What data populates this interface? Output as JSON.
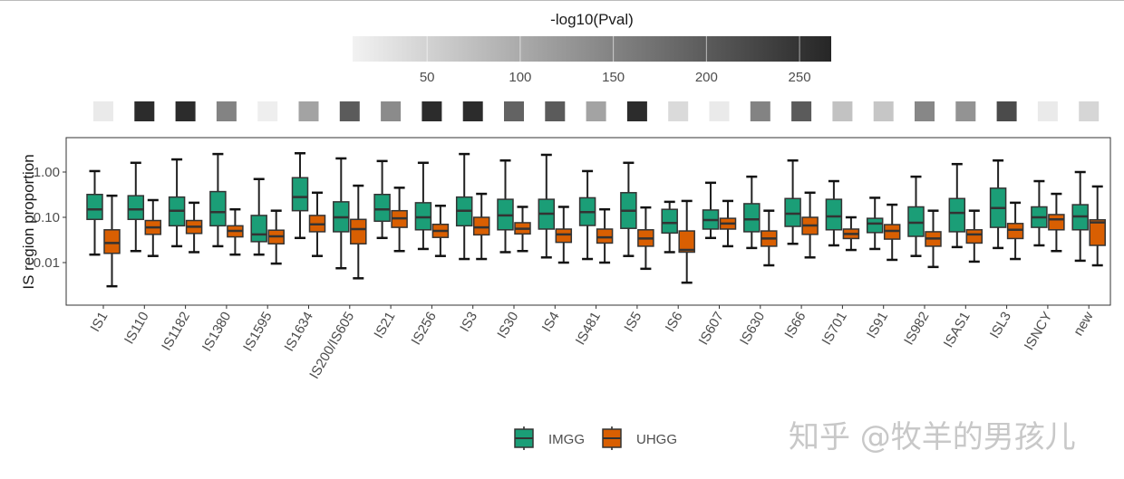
{
  "chart_data": {
    "type": "boxplot",
    "ylabel": "IS region proportion",
    "yscale": "log10",
    "yticks": [
      "0.01",
      "0.10",
      "1.00"
    ],
    "ytick_values": [
      0.01,
      0.1,
      1
    ],
    "ylim": [
      0.0013,
      5
    ],
    "grid": false,
    "legend_position": "bottom",
    "series": [
      {
        "name": "IMGG",
        "color": "#1b9e77"
      },
      {
        "name": "UHGG",
        "color": "#d95f02"
      }
    ],
    "categories": [
      "IS1",
      "IS110",
      "IS1182",
      "IS1380",
      "IS1595",
      "IS1634",
      "IS200/IS605",
      "IS21",
      "IS256",
      "IS3",
      "IS30",
      "IS4",
      "IS481",
      "IS5",
      "IS6",
      "IS607",
      "IS630",
      "IS66",
      "IS701",
      "IS91",
      "IS982",
      "ISAS1",
      "ISL3",
      "ISNCY",
      "new"
    ],
    "box_fields": [
      "whisker_low",
      "q1",
      "median",
      "q3",
      "whisker_high"
    ],
    "boxes": {
      "IMGG": [
        [
          0.015,
          0.09,
          0.15,
          0.32,
          1.05
        ],
        [
          0.018,
          0.09,
          0.15,
          0.3,
          1.6
        ],
        [
          0.023,
          0.065,
          0.14,
          0.28,
          1.9
        ],
        [
          0.023,
          0.065,
          0.13,
          0.37,
          2.5
        ],
        [
          0.015,
          0.029,
          0.042,
          0.11,
          0.7
        ],
        [
          0.035,
          0.14,
          0.28,
          0.75,
          2.6
        ],
        [
          0.0075,
          0.048,
          0.1,
          0.22,
          2.0
        ],
        [
          0.035,
          0.082,
          0.15,
          0.32,
          1.75
        ],
        [
          0.02,
          0.053,
          0.1,
          0.21,
          1.6
        ],
        [
          0.012,
          0.065,
          0.14,
          0.28,
          2.5
        ],
        [
          0.017,
          0.053,
          0.11,
          0.25,
          1.8
        ],
        [
          0.013,
          0.055,
          0.12,
          0.25,
          2.4
        ],
        [
          0.012,
          0.066,
          0.13,
          0.27,
          1.05
        ],
        [
          0.014,
          0.057,
          0.14,
          0.35,
          1.6
        ],
        [
          0.017,
          0.045,
          0.075,
          0.15,
          0.22
        ],
        [
          0.035,
          0.055,
          0.087,
          0.145,
          0.58
        ],
        [
          0.021,
          0.048,
          0.09,
          0.2,
          0.79
        ],
        [
          0.026,
          0.063,
          0.12,
          0.26,
          1.8
        ],
        [
          0.024,
          0.053,
          0.105,
          0.25,
          0.63
        ],
        [
          0.02,
          0.046,
          0.073,
          0.095,
          0.27
        ],
        [
          0.014,
          0.038,
          0.076,
          0.17,
          0.79
        ],
        [
          0.022,
          0.048,
          0.125,
          0.26,
          1.5
        ],
        [
          0.021,
          0.06,
          0.16,
          0.44,
          1.8
        ],
        [
          0.024,
          0.06,
          0.1,
          0.17,
          0.63
        ],
        [
          0.011,
          0.053,
          0.105,
          0.19,
          1.0
        ]
      ],
      "UHGG": [
        [
          0.003,
          0.016,
          0.027,
          0.053,
          0.3
        ],
        [
          0.014,
          0.042,
          0.06,
          0.085,
          0.24
        ],
        [
          0.017,
          0.044,
          0.062,
          0.085,
          0.21
        ],
        [
          0.015,
          0.037,
          0.05,
          0.065,
          0.15
        ],
        [
          0.0095,
          0.026,
          0.038,
          0.052,
          0.14
        ],
        [
          0.014,
          0.048,
          0.07,
          0.11,
          0.35
        ],
        [
          0.0045,
          0.026,
          0.055,
          0.09,
          0.5
        ],
        [
          0.018,
          0.06,
          0.095,
          0.14,
          0.45
        ],
        [
          0.014,
          0.036,
          0.05,
          0.07,
          0.18
        ],
        [
          0.012,
          0.041,
          0.06,
          0.1,
          0.33
        ],
        [
          0.018,
          0.043,
          0.056,
          0.076,
          0.17
        ],
        [
          0.01,
          0.028,
          0.042,
          0.055,
          0.17
        ],
        [
          0.01,
          0.027,
          0.036,
          0.055,
          0.15
        ],
        [
          0.0073,
          0.023,
          0.034,
          0.053,
          0.165
        ],
        [
          0.0036,
          0.017,
          0.019,
          0.05,
          0.23
        ],
        [
          0.023,
          0.055,
          0.073,
          0.095,
          0.23
        ],
        [
          0.0087,
          0.023,
          0.034,
          0.05,
          0.14
        ],
        [
          0.013,
          0.042,
          0.066,
          0.1,
          0.35
        ],
        [
          0.019,
          0.034,
          0.043,
          0.055,
          0.1
        ],
        [
          0.0115,
          0.033,
          0.05,
          0.069,
          0.19
        ],
        [
          0.008,
          0.023,
          0.034,
          0.048,
          0.14
        ],
        [
          0.0105,
          0.027,
          0.042,
          0.053,
          0.14
        ],
        [
          0.012,
          0.034,
          0.053,
          0.073,
          0.21
        ],
        [
          0.018,
          0.053,
          0.09,
          0.115,
          0.33
        ],
        [
          0.0087,
          0.024,
          0.077,
          0.088,
          0.48
        ]
      ]
    },
    "heatmap": {
      "title": "-log10(Pval)",
      "range": [
        10,
        267
      ],
      "ticks": [
        "50",
        "100",
        "150",
        "200",
        "250"
      ],
      "tick_values": [
        50,
        100,
        150,
        200,
        250
      ],
      "low_color": "#f2f2f2",
      "high_color": "#262626",
      "values": [
        20,
        260,
        260,
        150,
        15,
        110,
        200,
        140,
        260,
        260,
        190,
        200,
        110,
        260,
        40,
        20,
        150,
        200,
        70,
        65,
        145,
        130,
        220,
        20,
        45
      ]
    }
  },
  "watermark": "知乎 @牧羊的男孩儿"
}
